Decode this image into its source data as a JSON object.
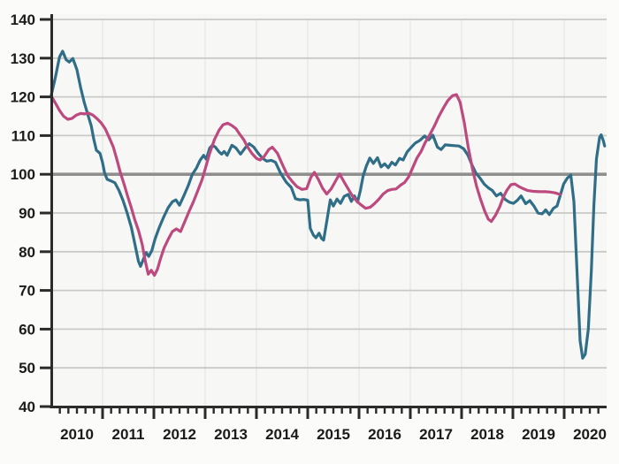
{
  "chart_data": {
    "type": "line",
    "title": "",
    "xlabel": "",
    "ylabel": "",
    "xlim": [
      2010.0,
      2020.83
    ],
    "ylim": [
      40,
      140
    ],
    "y_ticks": [
      40,
      50,
      60,
      70,
      80,
      90,
      100,
      110,
      120,
      130,
      140
    ],
    "x_year_labels": [
      "2010",
      "2011",
      "2012",
      "2013",
      "2014",
      "2015",
      "2016",
      "2017",
      "2018",
      "2019",
      "2020"
    ],
    "x_minor_ticks_per_year": 6,
    "reference_line_y": 100,
    "grid": "horizontal major gridlines on, faint vertical year gridlines",
    "legend": "none",
    "colors": {
      "teal_series": "#306e88",
      "pink_series": "#bd4a7e",
      "grid": "#c9c9c7",
      "grid_vertical": "#e9e9e7",
      "reference_line": "#8f8f8d",
      "axis": "#2b2b2b",
      "text": "#1b1b1b",
      "plot_background": "#f7f7f5",
      "page_background": "#fbfbf9"
    },
    "series": [
      {
        "name": "teal_monthly_series",
        "color_key": "teal_series",
        "points": [
          [
            2010.0,
            120.5
          ],
          [
            2010.08,
            125.0
          ],
          [
            2010.16,
            130.3
          ],
          [
            2010.22,
            131.8
          ],
          [
            2010.29,
            129.6
          ],
          [
            2010.35,
            129.0
          ],
          [
            2010.42,
            129.9
          ],
          [
            2010.5,
            127.0
          ],
          [
            2010.57,
            122.5
          ],
          [
            2010.64,
            118.7
          ],
          [
            2010.71,
            115.5
          ],
          [
            2010.78,
            112.5
          ],
          [
            2010.83,
            109.0
          ],
          [
            2010.88,
            106.2
          ],
          [
            2010.95,
            105.4
          ],
          [
            2011.0,
            103.0
          ],
          [
            2011.04,
            100.3
          ],
          [
            2011.09,
            98.7
          ],
          [
            2011.16,
            98.3
          ],
          [
            2011.24,
            97.8
          ],
          [
            2011.32,
            95.8
          ],
          [
            2011.4,
            93.2
          ],
          [
            2011.48,
            90.0
          ],
          [
            2011.56,
            86.3
          ],
          [
            2011.63,
            82.0
          ],
          [
            2011.7,
            77.5
          ],
          [
            2011.74,
            76.2
          ],
          [
            2011.8,
            78.2
          ],
          [
            2011.85,
            79.8
          ],
          [
            2011.9,
            78.8
          ],
          [
            2011.96,
            80.3
          ],
          [
            2012.02,
            83.2
          ],
          [
            2012.1,
            86.1
          ],
          [
            2012.19,
            88.9
          ],
          [
            2012.28,
            91.4
          ],
          [
            2012.36,
            92.9
          ],
          [
            2012.43,
            93.4
          ],
          [
            2012.5,
            92.0
          ],
          [
            2012.58,
            94.3
          ],
          [
            2012.67,
            97.1
          ],
          [
            2012.75,
            100.0
          ],
          [
            2012.83,
            101.6
          ],
          [
            2012.9,
            103.6
          ],
          [
            2012.97,
            104.9
          ],
          [
            2013.02,
            103.9
          ],
          [
            2013.09,
            106.8
          ],
          [
            2013.14,
            107.5
          ],
          [
            2013.2,
            107.0
          ],
          [
            2013.27,
            105.8
          ],
          [
            2013.32,
            105.2
          ],
          [
            2013.37,
            105.9
          ],
          [
            2013.43,
            104.9
          ],
          [
            2013.52,
            107.5
          ],
          [
            2013.6,
            106.8
          ],
          [
            2013.69,
            105.2
          ],
          [
            2013.78,
            106.8
          ],
          [
            2013.86,
            107.9
          ],
          [
            2013.95,
            107.0
          ],
          [
            2014.03,
            105.5
          ],
          [
            2014.12,
            104.1
          ],
          [
            2014.2,
            103.4
          ],
          [
            2014.29,
            103.6
          ],
          [
            2014.37,
            103.1
          ],
          [
            2014.47,
            100.3
          ],
          [
            2014.58,
            98.0
          ],
          [
            2014.68,
            96.6
          ],
          [
            2014.76,
            93.7
          ],
          [
            2014.84,
            93.4
          ],
          [
            2014.92,
            93.5
          ],
          [
            2015.0,
            93.3
          ],
          [
            2015.05,
            86.0
          ],
          [
            2015.11,
            84.3
          ],
          [
            2015.16,
            83.6
          ],
          [
            2015.22,
            84.8
          ],
          [
            2015.27,
            83.4
          ],
          [
            2015.31,
            83.0
          ],
          [
            2015.37,
            87.8
          ],
          [
            2015.44,
            93.4
          ],
          [
            2015.5,
            91.8
          ],
          [
            2015.57,
            93.6
          ],
          [
            2015.64,
            92.5
          ],
          [
            2015.71,
            94.3
          ],
          [
            2015.79,
            94.8
          ],
          [
            2015.85,
            93.0
          ],
          [
            2015.91,
            94.4
          ],
          [
            2015.97,
            92.8
          ],
          [
            2016.03,
            96.0
          ],
          [
            2016.08,
            99.5
          ],
          [
            2016.14,
            102.0
          ],
          [
            2016.21,
            104.2
          ],
          [
            2016.28,
            102.8
          ],
          [
            2016.36,
            104.3
          ],
          [
            2016.43,
            101.9
          ],
          [
            2016.5,
            102.7
          ],
          [
            2016.57,
            101.7
          ],
          [
            2016.64,
            103.1
          ],
          [
            2016.71,
            102.4
          ],
          [
            2016.79,
            104.1
          ],
          [
            2016.86,
            103.7
          ],
          [
            2016.94,
            105.8
          ],
          [
            2017.02,
            107.0
          ],
          [
            2017.1,
            108.1
          ],
          [
            2017.19,
            108.8
          ],
          [
            2017.28,
            109.9
          ],
          [
            2017.36,
            108.9
          ],
          [
            2017.44,
            110.1
          ],
          [
            2017.53,
            107.0
          ],
          [
            2017.6,
            106.4
          ],
          [
            2017.68,
            107.6
          ],
          [
            2017.77,
            107.5
          ],
          [
            2017.86,
            107.4
          ],
          [
            2017.95,
            107.3
          ],
          [
            2018.04,
            106.6
          ],
          [
            2018.12,
            105.0
          ],
          [
            2018.2,
            102.5
          ],
          [
            2018.28,
            100.3
          ],
          [
            2018.36,
            99.0
          ],
          [
            2018.44,
            97.5
          ],
          [
            2018.52,
            96.5
          ],
          [
            2018.6,
            95.8
          ],
          [
            2018.68,
            94.4
          ],
          [
            2018.76,
            95.1
          ],
          [
            2018.85,
            93.5
          ],
          [
            2018.93,
            92.8
          ],
          [
            2019.01,
            92.5
          ],
          [
            2019.09,
            93.3
          ],
          [
            2019.16,
            94.4
          ],
          [
            2019.25,
            92.4
          ],
          [
            2019.33,
            93.2
          ],
          [
            2019.41,
            91.8
          ],
          [
            2019.49,
            90.0
          ],
          [
            2019.57,
            89.8
          ],
          [
            2019.64,
            90.8
          ],
          [
            2019.71,
            89.6
          ],
          [
            2019.79,
            91.2
          ],
          [
            2019.86,
            91.8
          ],
          [
            2019.93,
            94.8
          ],
          [
            2019.99,
            97.5
          ],
          [
            2020.06,
            99.0
          ],
          [
            2020.13,
            99.8
          ],
          [
            2020.19,
            93.0
          ],
          [
            2020.25,
            75.0
          ],
          [
            2020.31,
            57.0
          ],
          [
            2020.36,
            52.5
          ],
          [
            2020.41,
            53.5
          ],
          [
            2020.47,
            60.0
          ],
          [
            2020.53,
            75.0
          ],
          [
            2020.58,
            92.0
          ],
          [
            2020.63,
            104.0
          ],
          [
            2020.69,
            109.5
          ],
          [
            2020.72,
            110.2
          ],
          [
            2020.76,
            108.8
          ],
          [
            2020.79,
            107.3
          ]
        ]
      },
      {
        "name": "pink_monthly_series",
        "color_key": "pink_series",
        "points": [
          [
            2010.0,
            120.2
          ],
          [
            2010.08,
            118.4
          ],
          [
            2010.16,
            116.5
          ],
          [
            2010.24,
            115.0
          ],
          [
            2010.32,
            114.2
          ],
          [
            2010.4,
            114.4
          ],
          [
            2010.49,
            115.3
          ],
          [
            2010.57,
            115.7
          ],
          [
            2010.65,
            115.6
          ],
          [
            2010.73,
            115.8
          ],
          [
            2010.81,
            115.3
          ],
          [
            2010.89,
            114.4
          ],
          [
            2010.97,
            113.3
          ],
          [
            2011.05,
            111.8
          ],
          [
            2011.13,
            109.5
          ],
          [
            2011.21,
            107.0
          ],
          [
            2011.28,
            103.8
          ],
          [
            2011.35,
            100.3
          ],
          [
            2011.42,
            97.4
          ],
          [
            2011.49,
            94.3
          ],
          [
            2011.55,
            91.8
          ],
          [
            2011.63,
            88.2
          ],
          [
            2011.7,
            85.5
          ],
          [
            2011.77,
            82.0
          ],
          [
            2011.83,
            77.8
          ],
          [
            2011.89,
            74.2
          ],
          [
            2011.95,
            75.2
          ],
          [
            2012.01,
            73.9
          ],
          [
            2012.07,
            75.5
          ],
          [
            2012.13,
            78.2
          ],
          [
            2012.2,
            81.0
          ],
          [
            2012.28,
            83.2
          ],
          [
            2012.36,
            85.2
          ],
          [
            2012.44,
            85.9
          ],
          [
            2012.52,
            85.2
          ],
          [
            2012.6,
            87.7
          ],
          [
            2012.69,
            90.5
          ],
          [
            2012.77,
            92.9
          ],
          [
            2012.86,
            95.9
          ],
          [
            2012.94,
            98.6
          ],
          [
            2013.01,
            101.8
          ],
          [
            2013.09,
            105.5
          ],
          [
            2013.18,
            108.9
          ],
          [
            2013.27,
            111.4
          ],
          [
            2013.35,
            112.8
          ],
          [
            2013.44,
            113.2
          ],
          [
            2013.52,
            112.6
          ],
          [
            2013.6,
            111.8
          ],
          [
            2013.67,
            110.4
          ],
          [
            2013.75,
            109.0
          ],
          [
            2013.83,
            107.0
          ],
          [
            2013.91,
            105.4
          ],
          [
            2014.0,
            104.1
          ],
          [
            2014.07,
            103.7
          ],
          [
            2014.15,
            104.6
          ],
          [
            2014.24,
            106.4
          ],
          [
            2014.31,
            107.0
          ],
          [
            2014.41,
            105.4
          ],
          [
            2014.51,
            102.4
          ],
          [
            2014.61,
            99.6
          ],
          [
            2014.7,
            98.1
          ],
          [
            2014.79,
            96.8
          ],
          [
            2014.89,
            96.1
          ],
          [
            2014.98,
            96.3
          ],
          [
            2015.06,
            99.2
          ],
          [
            2015.13,
            100.5
          ],
          [
            2015.21,
            98.6
          ],
          [
            2015.29,
            96.4
          ],
          [
            2015.37,
            94.9
          ],
          [
            2015.46,
            96.3
          ],
          [
            2015.54,
            98.2
          ],
          [
            2015.62,
            100.1
          ],
          [
            2015.71,
            98.0
          ],
          [
            2015.79,
            96.2
          ],
          [
            2015.87,
            94.4
          ],
          [
            2015.96,
            93.0
          ],
          [
            2016.04,
            92.1
          ],
          [
            2016.13,
            91.2
          ],
          [
            2016.22,
            91.5
          ],
          [
            2016.3,
            92.4
          ],
          [
            2016.39,
            93.6
          ],
          [
            2016.47,
            94.9
          ],
          [
            2016.56,
            95.8
          ],
          [
            2016.64,
            96.1
          ],
          [
            2016.72,
            96.2
          ],
          [
            2016.81,
            97.2
          ],
          [
            2016.89,
            97.9
          ],
          [
            2016.97,
            99.4
          ],
          [
            2017.05,
            101.8
          ],
          [
            2017.13,
            104.2
          ],
          [
            2017.21,
            105.9
          ],
          [
            2017.29,
            108.2
          ],
          [
            2017.38,
            110.2
          ],
          [
            2017.47,
            112.5
          ],
          [
            2017.55,
            114.8
          ],
          [
            2017.64,
            117.0
          ],
          [
            2017.73,
            119.0
          ],
          [
            2017.82,
            120.3
          ],
          [
            2017.9,
            120.6
          ],
          [
            2017.97,
            118.6
          ],
          [
            2018.05,
            113.5
          ],
          [
            2018.13,
            107.0
          ],
          [
            2018.21,
            101.5
          ],
          [
            2018.29,
            97.0
          ],
          [
            2018.37,
            93.5
          ],
          [
            2018.45,
            90.5
          ],
          [
            2018.52,
            88.4
          ],
          [
            2018.58,
            87.8
          ],
          [
            2018.66,
            89.4
          ],
          [
            2018.74,
            91.5
          ],
          [
            2018.81,
            94.0
          ],
          [
            2018.88,
            95.8
          ],
          [
            2018.96,
            97.3
          ],
          [
            2019.04,
            97.5
          ],
          [
            2019.12,
            96.8
          ],
          [
            2019.2,
            96.3
          ],
          [
            2019.29,
            95.8
          ],
          [
            2019.4,
            95.6
          ],
          [
            2019.52,
            95.5
          ],
          [
            2019.63,
            95.5
          ],
          [
            2019.73,
            95.4
          ],
          [
            2019.82,
            95.2
          ],
          [
            2019.92,
            94.8
          ]
        ]
      }
    ]
  }
}
